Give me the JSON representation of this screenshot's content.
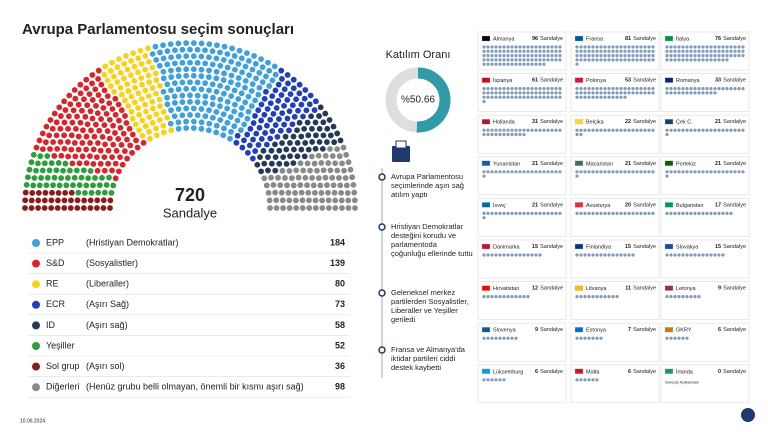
{
  "title": "Avrupa Parlamentosu seçim sonuçları",
  "hemicycle": {
    "total": 720,
    "total_label": "Sandalye",
    "parties": [
      {
        "name": "EPP",
        "desc": "(Hristiyan Demokratlar)",
        "seats": 184,
        "color": "#3fa0e0"
      },
      {
        "name": "S&D",
        "desc": "(Sosyalistler)",
        "seats": 139,
        "color": "#d9252a"
      },
      {
        "name": "RE",
        "desc": "(Liberaller)",
        "seats": 80,
        "color": "#f5d21e"
      },
      {
        "name": "ECR",
        "desc": "(Aşırı Sağ)",
        "seats": 73,
        "color": "#1f3fbf"
      },
      {
        "name": "ID",
        "desc": "(Aşırı sağ)",
        "seats": 58,
        "color": "#243858"
      },
      {
        "name": "Yeşiller",
        "seats": 52,
        "color": "#2e9e3a"
      },
      {
        "name": "Sol grup",
        "desc": "(Aşırı sol)",
        "seats": 36,
        "color": "#8b1a1a"
      },
      {
        "name": "Diğerleri",
        "desc": "(Henüz grubu belli olmayan, önemli bir kısmı aşırı sağ)",
        "seats": 98,
        "color": "#8a8a8a"
      }
    ]
  },
  "turnout": {
    "title": "Katılım Oranı",
    "value": 50.66,
    "value_label": "%50.66",
    "color": "#2f9aa8"
  },
  "notes": [
    "Avrupa Parlamentosu seçimlerinde aşırı sağ atılım yaptı",
    "Hristiyan Demokratlar desteğini korudu ve parlamentoda çoğunluğu ellerinde tuttu",
    "Geleneksel merkez partilerden Sosyalistler, Liberaller ve Yeşiller geriledi",
    "Fransa ve Almanya'da iktidar partileri ciddi destek kaybetti"
  ],
  "seat_unit": "Sandalye",
  "countries": [
    {
      "name": "Almanya",
      "seats": 96
    },
    {
      "name": "Fransa",
      "seats": 81
    },
    {
      "name": "İtalya",
      "seats": 76
    },
    {
      "name": "İspanya",
      "seats": 61
    },
    {
      "name": "Polonya",
      "seats": 53
    },
    {
      "name": "Romanya",
      "seats": 33
    },
    {
      "name": "Hollanda",
      "seats": 31
    },
    {
      "name": "Belçika",
      "seats": 22
    },
    {
      "name": "Çek C.",
      "seats": 21
    },
    {
      "name": "Yunanistan",
      "seats": 21
    },
    {
      "name": "Macaristan",
      "seats": 21
    },
    {
      "name": "Portekiz",
      "seats": 21
    },
    {
      "name": "İsveç",
      "seats": 21
    },
    {
      "name": "Avusturya",
      "seats": 20
    },
    {
      "name": "Bulgaristan",
      "seats": 17
    },
    {
      "name": "Danimarka",
      "seats": 15
    },
    {
      "name": "Finlandiya",
      "seats": 15
    },
    {
      "name": "Slovakya",
      "seats": 15
    },
    {
      "name": "Hırvatistan",
      "seats": 12
    },
    {
      "name": "Litvanya",
      "seats": 11
    },
    {
      "name": "Letonya",
      "seats": 9
    },
    {
      "name": "Slovenya",
      "seats": 9
    },
    {
      "name": "Estonya",
      "seats": 7
    },
    {
      "name": "GKRY",
      "seats": 6
    },
    {
      "name": "Lüksemburg",
      "seats": 6
    },
    {
      "name": "Malta",
      "seats": 6
    },
    {
      "name": "İrlanda",
      "seats": 0,
      "note": "Sonuçlar Açıklanmadı"
    }
  ],
  "date": "10.06.2024"
}
